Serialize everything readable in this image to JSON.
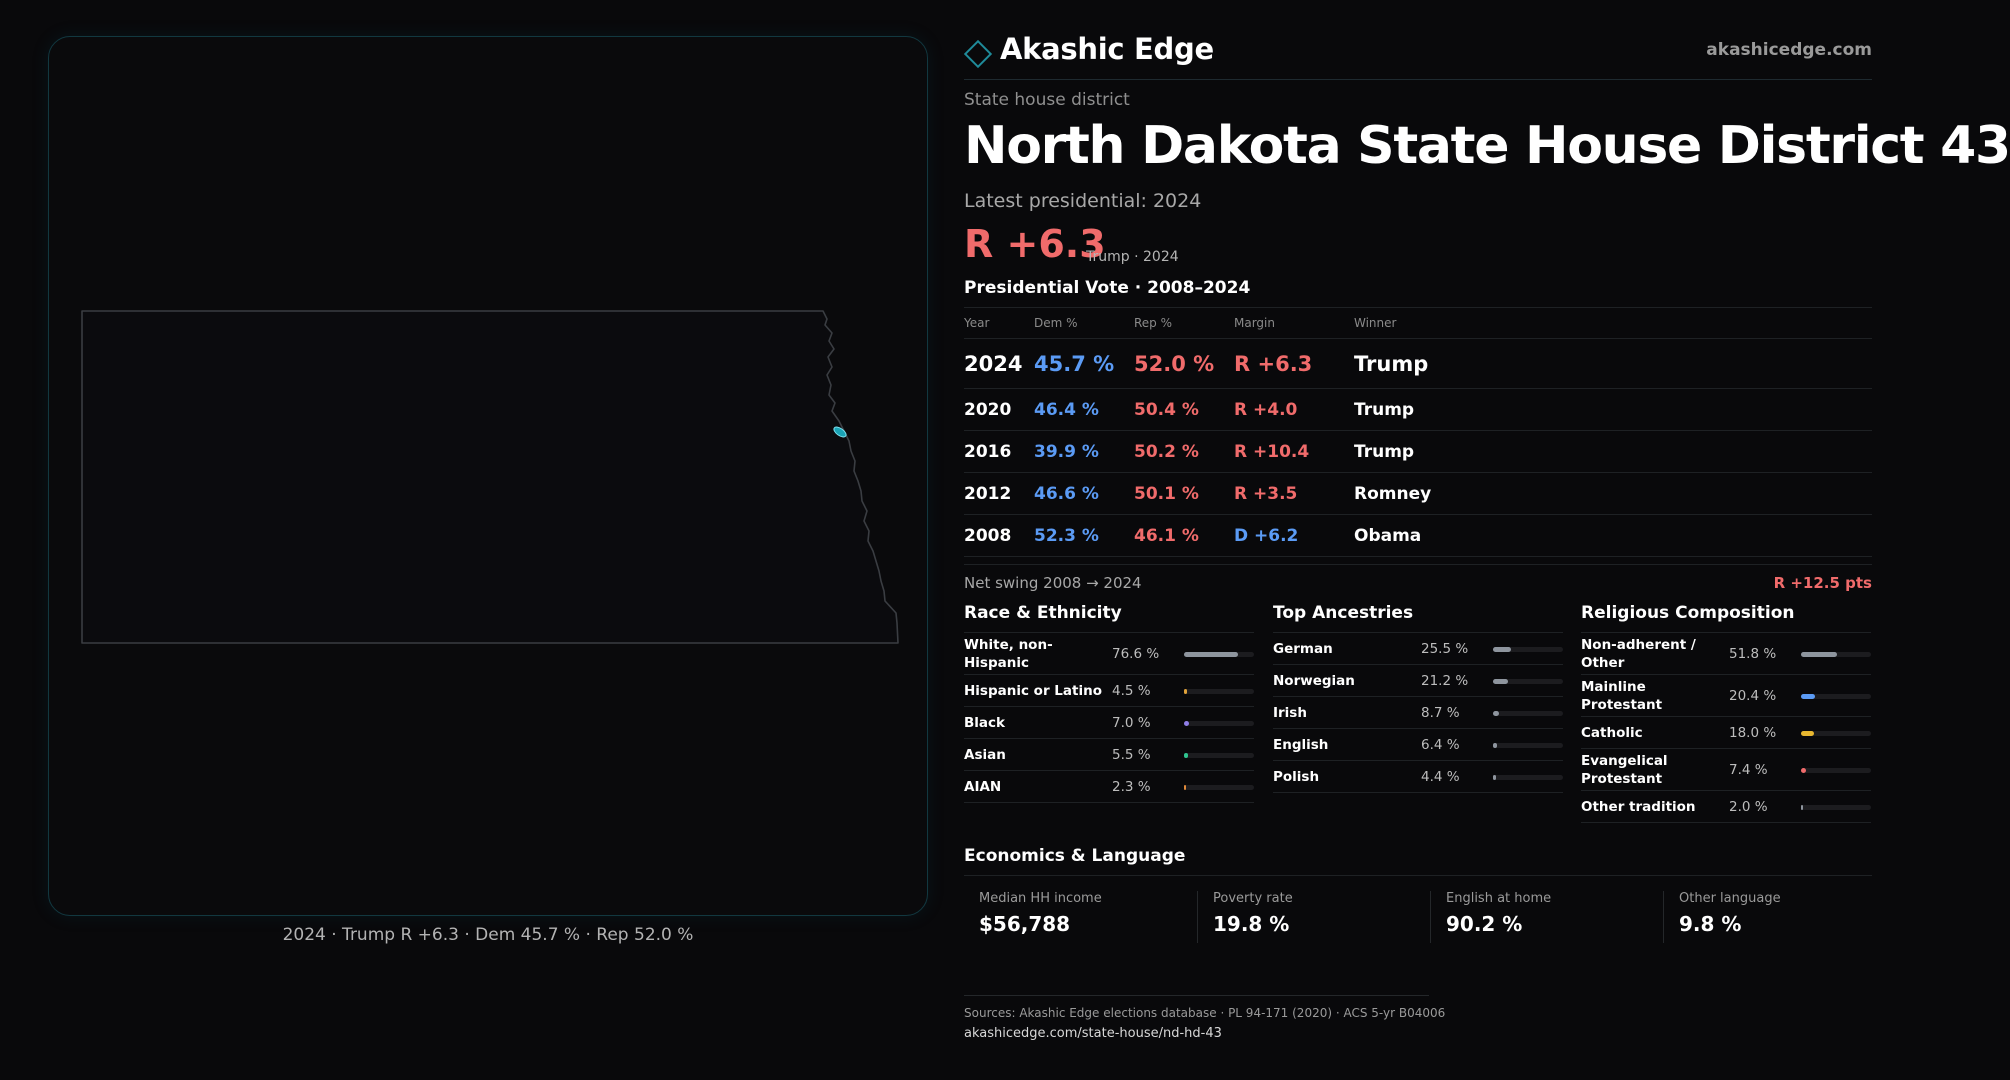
{
  "brand": {
    "name": "Akashic Edge",
    "url": "akashicedge.com"
  },
  "district": {
    "kind": "State house district",
    "title": "North Dakota State House District 43",
    "latest_label": "Latest presidential: 2024",
    "margin": "R +6.3",
    "margin_sub": "Trump · 2024"
  },
  "map": {
    "caption": "2024 · Trump R +6.3 · Dem 45.7 % · Rep 52.0 %",
    "district_color": "#1aa3b5"
  },
  "vote_table": {
    "title": "Presidential Vote · 2008–2024",
    "headers": {
      "year": "Year",
      "dem": "Dem %",
      "rep": "Rep %",
      "margin": "Margin",
      "winner": "Winner"
    },
    "rows": [
      {
        "year": "2024",
        "dem": "45.7 %",
        "rep": "52.0 %",
        "margin": "R +6.3",
        "party": "R",
        "winner": "Trump"
      },
      {
        "year": "2020",
        "dem": "46.4 %",
        "rep": "50.4 %",
        "margin": "R +4.0",
        "party": "R",
        "winner": "Trump"
      },
      {
        "year": "2016",
        "dem": "39.9 %",
        "rep": "50.2 %",
        "margin": "R +10.4",
        "party": "R",
        "winner": "Trump"
      },
      {
        "year": "2012",
        "dem": "46.6 %",
        "rep": "50.1 %",
        "margin": "R +3.5",
        "party": "R",
        "winner": "Romney"
      },
      {
        "year": "2008",
        "dem": "52.3 %",
        "rep": "46.1 %",
        "margin": "D +6.2",
        "party": "D",
        "winner": "Obama"
      }
    ]
  },
  "net_swing": {
    "label": "Net swing 2008 → 2024",
    "value": "R +12.5 pts"
  },
  "colors": {
    "dem": "#5b9bf5",
    "rep": "#f06b6b"
  },
  "race": {
    "title": "Race & Ethnicity",
    "items": [
      {
        "label": "White, non-Hispanic",
        "value": "76.6 %",
        "pct": 76.6,
        "color": "#8e959e"
      },
      {
        "label": "Hispanic or Latino",
        "value": "4.5 %",
        "pct": 4.5,
        "color": "#e0a23a"
      },
      {
        "label": "Black",
        "value": "7.0 %",
        "pct": 7.0,
        "color": "#8f7ee8"
      },
      {
        "label": "Asian",
        "value": "5.5 %",
        "pct": 5.5,
        "color": "#2fc48f"
      },
      {
        "label": "AIAN",
        "value": "2.3 %",
        "pct": 2.3,
        "color": "#e08a3a"
      }
    ]
  },
  "ancestry": {
    "title": "Top Ancestries",
    "items": [
      {
        "label": "German",
        "value": "25.5 %",
        "pct": 25.5,
        "color": "#8e959e"
      },
      {
        "label": "Norwegian",
        "value": "21.2 %",
        "pct": 21.2,
        "color": "#8e959e"
      },
      {
        "label": "Irish",
        "value": "8.7 %",
        "pct": 8.7,
        "color": "#8e959e"
      },
      {
        "label": "English",
        "value": "6.4 %",
        "pct": 6.4,
        "color": "#8e959e"
      },
      {
        "label": "Polish",
        "value": "4.4 %",
        "pct": 4.4,
        "color": "#8e959e"
      }
    ]
  },
  "religion": {
    "title": "Religious Composition",
    "items": [
      {
        "label": "Non-adherent / Other",
        "value": "51.8 %",
        "pct": 51.8,
        "color": "#8e959e"
      },
      {
        "label": "Mainline Protestant",
        "value": "20.4 %",
        "pct": 20.4,
        "color": "#5b9bf5"
      },
      {
        "label": "Catholic",
        "value": "18.0 %",
        "pct": 18.0,
        "color": "#e8b730"
      },
      {
        "label": "Evangelical Protestant",
        "value": "7.4 %",
        "pct": 7.4,
        "color": "#f06b6b"
      },
      {
        "label": "Other tradition",
        "value": "2.0 %",
        "pct": 2.0,
        "color": "#8e959e"
      }
    ]
  },
  "economics": {
    "title": "Economics & Language",
    "items": [
      {
        "label": "Median HH income",
        "value": "$56,788"
      },
      {
        "label": "Poverty rate",
        "value": "19.8 %"
      },
      {
        "label": "English at home",
        "value": "90.2 %"
      },
      {
        "label": "Other language",
        "value": "9.8 %"
      }
    ]
  },
  "footer": {
    "sources": "Sources: Akashic Edge elections database · PL 94-171 (2020) · ACS 5-yr B04006",
    "url": "akashicedge.com/state-house/nd-hd-43"
  }
}
